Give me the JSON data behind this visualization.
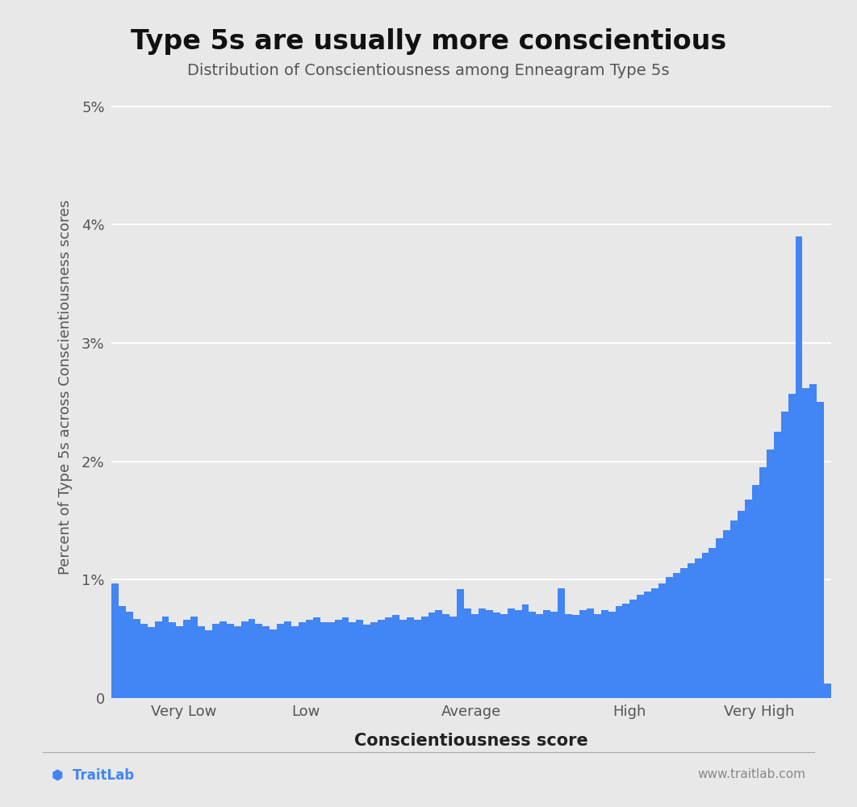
{
  "title": "Type 5s are usually more conscientious",
  "subtitle": "Distribution of Conscientiousness among Enneagram Type 5s",
  "xlabel": "Conscientiousness score",
  "ylabel": "Percent of Type 5s across Conscientiousness scores",
  "bar_color": "#4285f4",
  "background_color": "#e8e8e8",
  "plot_bg_color": "#e8e8e8",
  "ylim": [
    0,
    5.25
  ],
  "yticks": [
    0,
    1,
    2,
    3,
    4,
    5
  ],
  "ytick_labels": [
    "0",
    "1%",
    "2%",
    "3%",
    "4%",
    "5%"
  ],
  "x_category_labels": [
    "Very Low",
    "Low",
    "Average",
    "High",
    "Very High"
  ],
  "x_category_positions": [
    10,
    27,
    50,
    72,
    90
  ],
  "footer_logo_text": "TraitLab",
  "footer_website": "www.traitlab.com",
  "title_fontsize": 24,
  "subtitle_fontsize": 14,
  "axis_label_fontsize": 14,
  "tick_fontsize": 13,
  "bar_heights": [
    0.97,
    0.78,
    0.73,
    0.67,
    0.63,
    0.6,
    0.65,
    0.69,
    0.64,
    0.61,
    0.66,
    0.69,
    0.61,
    0.57,
    0.63,
    0.65,
    0.63,
    0.61,
    0.65,
    0.67,
    0.63,
    0.61,
    0.58,
    0.63,
    0.65,
    0.61,
    0.64,
    0.66,
    0.68,
    0.64,
    0.64,
    0.66,
    0.68,
    0.64,
    0.66,
    0.62,
    0.64,
    0.66,
    0.68,
    0.7,
    0.66,
    0.68,
    0.66,
    0.69,
    0.72,
    0.74,
    0.71,
    0.69,
    0.92,
    0.76,
    0.71,
    0.76,
    0.74,
    0.72,
    0.71,
    0.76,
    0.74,
    0.79,
    0.73,
    0.71,
    0.74,
    0.73,
    0.93,
    0.71,
    0.7,
    0.74,
    0.76,
    0.71,
    0.74,
    0.73,
    0.78,
    0.8,
    0.83,
    0.87,
    0.9,
    0.93,
    0.97,
    1.02,
    1.06,
    1.1,
    1.14,
    1.18,
    1.23,
    1.27,
    1.35,
    1.42,
    1.5,
    1.58,
    1.68,
    1.8,
    1.95,
    2.1,
    2.25,
    2.42,
    2.57,
    3.9,
    2.62,
    2.65,
    2.5,
    0.12
  ]
}
